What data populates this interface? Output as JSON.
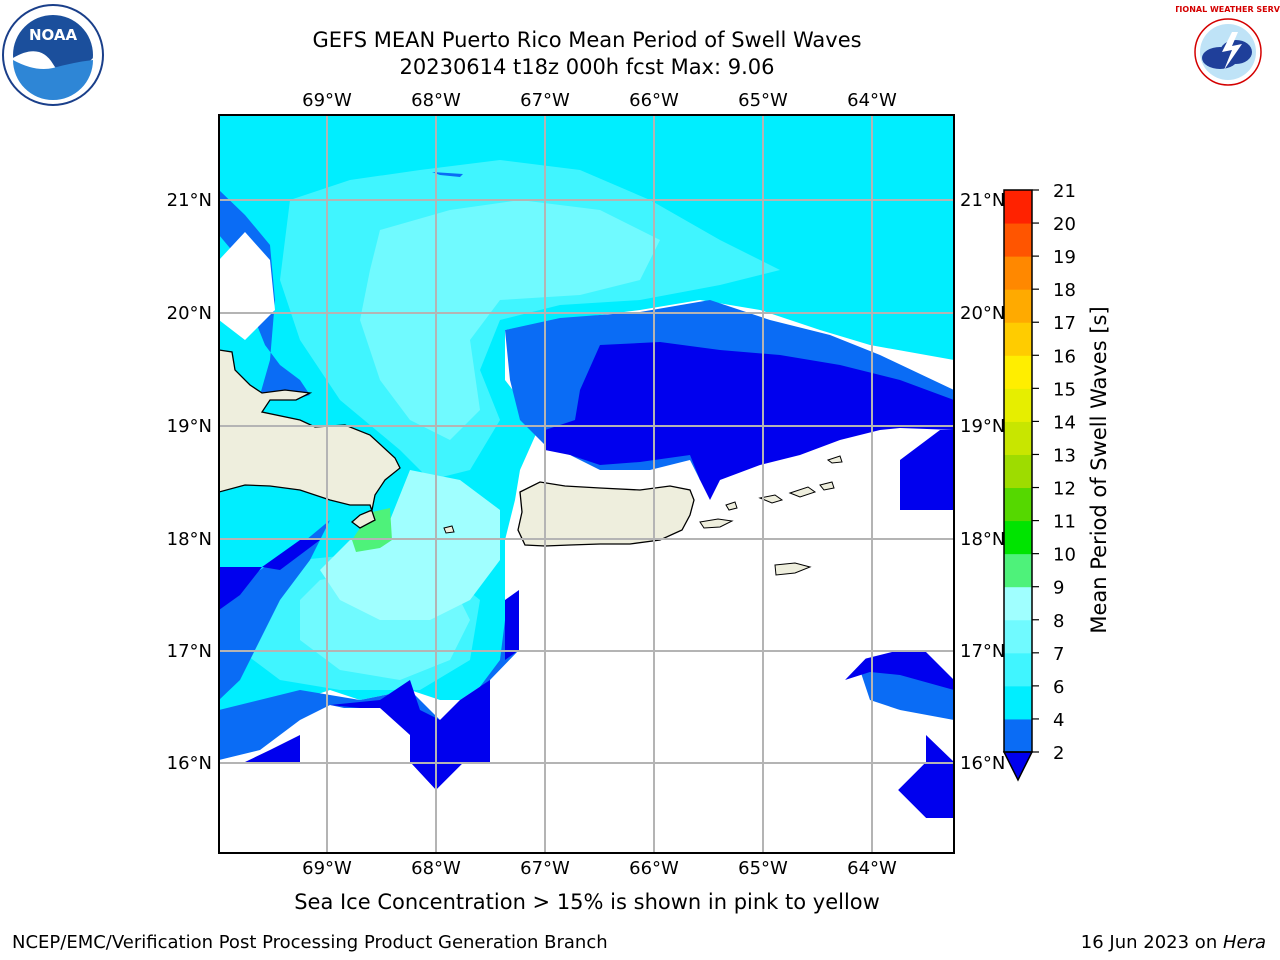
{
  "header": {
    "title_line1": "GEFS MEAN Puerto Rico Mean Period of Swell Waves",
    "title_line2": "20230614 t18z 000h fcst   Max: 9.06"
  },
  "map": {
    "lon_labels": [
      "69°W",
      "68°W",
      "67°W",
      "66°W",
      "65°W",
      "64°W"
    ],
    "lat_labels": [
      "21°N",
      "20°N",
      "19°N",
      "18°N",
      "17°N",
      "16°N"
    ],
    "land_color": "#eeeedd",
    "grid_color": "#b4b4b4"
  },
  "colorbar": {
    "label": "Mean Period of Swell Waves [s]",
    "ticks": [
      "2",
      "4",
      "6",
      "7",
      "8",
      "9",
      "10",
      "11",
      "12",
      "13",
      "14",
      "15",
      "16",
      "17",
      "18",
      "19",
      "20",
      "21"
    ],
    "colors": [
      "#0a6cf5",
      "#00eeff",
      "#40f5ff",
      "#70faff",
      "#a0ffff",
      "#4ef27a",
      "#00e400",
      "#55d800",
      "#9edc00",
      "#c8e600",
      "#e6ee00",
      "#ffee00",
      "#ffcc00",
      "#ffaa00",
      "#ff8800",
      "#ff5500",
      "#ff2200"
    ],
    "under_color": "#0000ee"
  },
  "footer": {
    "note": "Sea Ice Concentration > 15% is shown in pink to yellow",
    "left_credit": "NCEP/EMC/Verification Post Processing Product Generation Branch",
    "right_date": "16 Jun 2023 on ",
    "right_host": "Hera"
  },
  "logos": {
    "noaa_text": "NOAA",
    "nws_text": "NATIONAL WEATHER SERVICE"
  }
}
